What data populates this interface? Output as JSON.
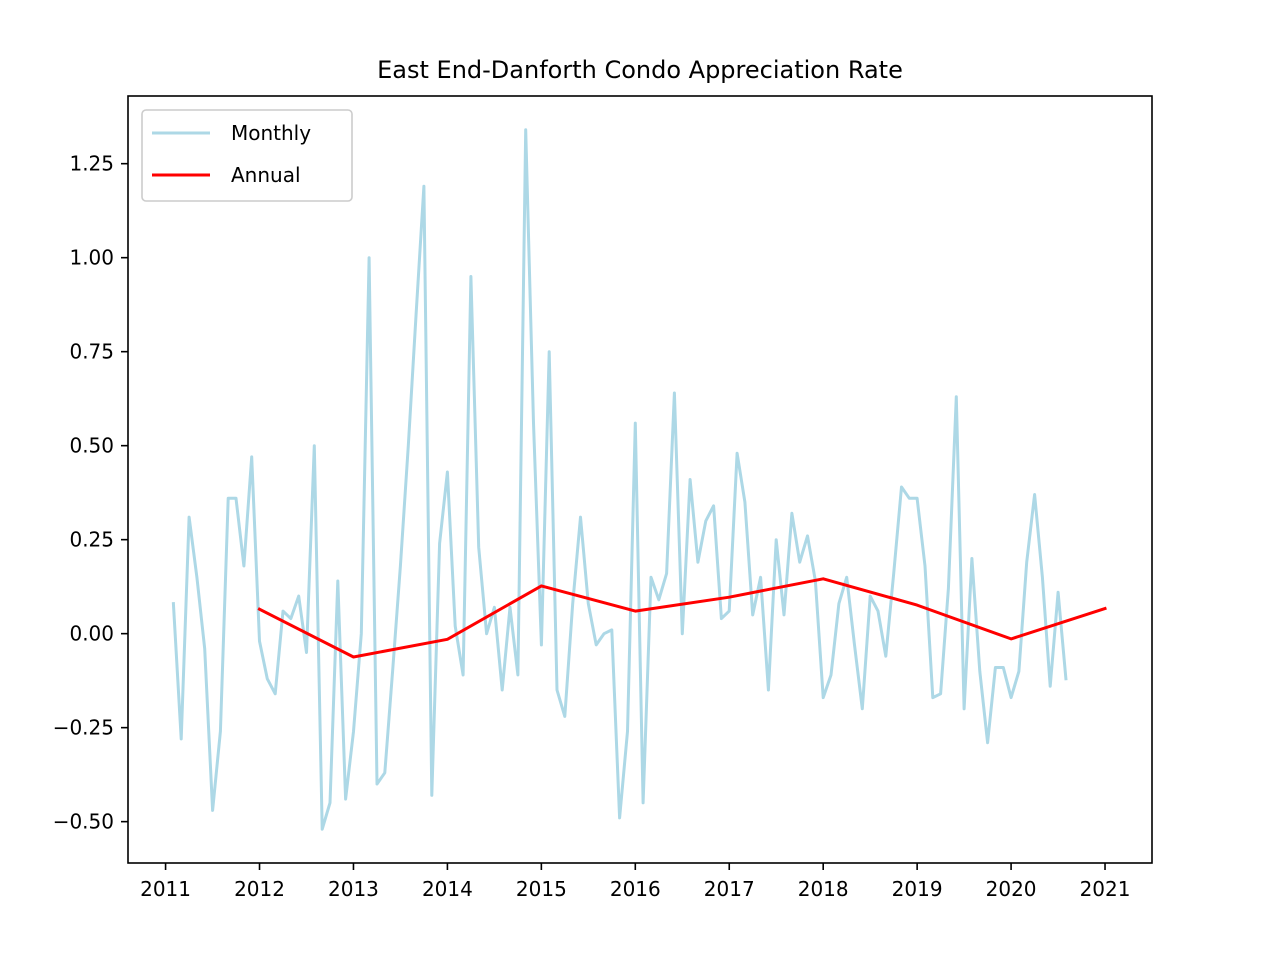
{
  "chart_data": {
    "type": "line",
    "title": "East End-Danforth Condo Appreciation Rate",
    "xlabel": "",
    "ylabel": "",
    "xlim": [
      2010.6,
      2021.5
    ],
    "ylim": [
      -0.61,
      1.43
    ],
    "x_ticks": [
      2011,
      2012,
      2013,
      2014,
      2015,
      2016,
      2017,
      2018,
      2019,
      2020,
      2021
    ],
    "x_tick_labels": [
      "2011",
      "2012",
      "2013",
      "2014",
      "2015",
      "2016",
      "2017",
      "2018",
      "2019",
      "2020",
      "2021"
    ],
    "y_ticks": [
      -0.5,
      -0.25,
      0.0,
      0.25,
      0.5,
      0.75,
      1.0,
      1.25
    ],
    "y_tick_labels": [
      "−0.50",
      "−0.25",
      "0.00",
      "0.25",
      "0.50",
      "0.75",
      "1.00",
      "1.25"
    ],
    "grid": false,
    "legend_position": "top-left",
    "series": [
      {
        "name": "Monthly",
        "color": "#add8e6",
        "x": [
          2011.0833,
          2011.1667,
          2011.25,
          2011.3333,
          2011.4167,
          2011.5,
          2011.5833,
          2011.6667,
          2011.75,
          2011.8333,
          2011.9167,
          2012.0,
          2012.0833,
          2012.1667,
          2012.25,
          2012.3333,
          2012.4167,
          2012.5,
          2012.5833,
          2012.6667,
          2012.75,
          2012.8333,
          2012.9167,
          2013.0,
          2013.0833,
          2013.1667,
          2013.25,
          2013.3333,
          2013.4167,
          2013.5,
          2013.5833,
          2013.6667,
          2013.75,
          2013.8333,
          2013.9167,
          2014.0,
          2014.0833,
          2014.1667,
          2014.25,
          2014.3333,
          2014.4167,
          2014.5,
          2014.5833,
          2014.6667,
          2014.75,
          2014.8333,
          2014.9167,
          2015.0,
          2015.0833,
          2015.1667,
          2015.25,
          2015.3333,
          2015.4167,
          2015.5,
          2015.5833,
          2015.6667,
          2015.75,
          2015.8333,
          2015.9167,
          2016.0,
          2016.0833,
          2016.1667,
          2016.25,
          2016.3333,
          2016.4167,
          2016.5,
          2016.5833,
          2016.6667,
          2016.75,
          2016.8333,
          2016.9167,
          2017.0,
          2017.0833,
          2017.1667,
          2017.25,
          2017.3333,
          2017.4167,
          2017.5,
          2017.5833,
          2017.6667,
          2017.75,
          2017.8333,
          2017.9167,
          2018.0,
          2018.0833,
          2018.1667,
          2018.25,
          2018.3333,
          2018.4167,
          2018.5,
          2018.5833,
          2018.6667,
          2018.75,
          2018.8333,
          2018.9167,
          2019.0,
          2019.0833,
          2019.1667,
          2019.25,
          2019.3333,
          2019.4167,
          2019.5,
          2019.5833,
          2019.6667,
          2019.75,
          2019.8333,
          2019.9167,
          2020.0,
          2020.0833,
          2020.1667,
          2020.25,
          2020.3333,
          2020.4167,
          2020.5,
          2020.5833
        ],
        "values": [
          0.08,
          -0.28,
          0.31,
          0.15,
          -0.04,
          -0.47,
          -0.26,
          0.36,
          0.36,
          0.18,
          0.47,
          -0.02,
          -0.12,
          -0.16,
          0.06,
          0.04,
          0.1,
          -0.05,
          0.5,
          -0.52,
          -0.45,
          0.14,
          -0.44,
          -0.26,
          0.0,
          1.0,
          -0.4,
          -0.37,
          -0.1,
          0.18,
          0.5,
          0.85,
          1.19,
          -0.43,
          0.24,
          0.43,
          0.02,
          -0.11,
          0.95,
          0.23,
          0.0,
          0.07,
          -0.15,
          0.07,
          -0.11,
          1.34,
          0.56,
          -0.03,
          0.75,
          -0.15,
          -0.22,
          0.08,
          0.31,
          0.08,
          -0.03,
          0.0,
          0.01,
          -0.49,
          -0.26,
          0.56,
          -0.45,
          0.15,
          0.09,
          0.16,
          0.64,
          0.0,
          0.41,
          0.19,
          0.3,
          0.34,
          0.04,
          0.06,
          0.48,
          0.35,
          0.05,
          0.15,
          -0.15,
          0.25,
          0.05,
          0.32,
          0.19,
          0.26,
          0.14,
          -0.17,
          -0.11,
          0.08,
          0.15,
          -0.03,
          -0.2,
          0.1,
          0.06,
          -0.06,
          0.16,
          0.39,
          0.36,
          0.36,
          0.18,
          -0.17,
          -0.16,
          0.12,
          0.63,
          -0.2,
          0.2,
          -0.1,
          -0.29,
          -0.09,
          -0.09,
          -0.17,
          -0.1,
          0.19,
          0.37,
          0.15,
          -0.14,
          0.11,
          -0.12
        ]
      },
      {
        "name": "Annual",
        "color": "#ff0000",
        "x": [
          2012,
          2013,
          2014,
          2015,
          2016,
          2017,
          2018,
          2019,
          2020,
          2021
        ],
        "values": [
          0.065,
          -0.062,
          -0.015,
          0.127,
          0.06,
          0.097,
          0.146,
          0.076,
          -0.014,
          0.067
        ]
      }
    ]
  }
}
